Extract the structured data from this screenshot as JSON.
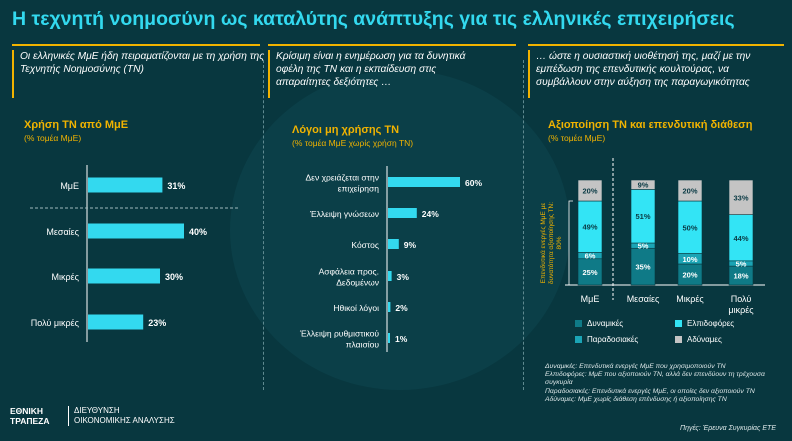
{
  "title": "Η τεχνητή νοημοσύνη ως καταλύτης ανάπτυξης για τις ελληνικές επιχειρήσεις",
  "intros": [
    "Οι ελληνικές ΜμΕ ήδη πειραματίζονται με τη χρήση της Τεχνητής Νοημοσύνης (ΤΝ)",
    "Κρίσιμη είναι η ενημέρωση για τα δυνητικά οφέλη της ΤΝ και η εκπαίδευση στις απαραίτητες δεξιότητες …",
    "… ώστε η ουσιαστική υιοθέτησή της, μαζί με την εμπέδωση της επενδυτικής κουλτούρας, να συμβάλλουν στην αύξηση της παραγωγικότητας"
  ],
  "colors": {
    "background": "#08373f",
    "title": "#33d9ef",
    "accent": "#f1b300",
    "bar": "#33d9ef",
    "dynamic": "#0f7a87",
    "hopeful": "#1ba4b5",
    "traditional": "#33e4f5",
    "weak": "#c4c4c4"
  },
  "chart_data": [
    {
      "type": "bar",
      "orientation": "horizontal",
      "title": "Χρήση ΤΝ από ΜμΕ",
      "subtitle": "(% τομέα ΜμΕ)",
      "categories": [
        "ΜμΕ",
        "Μεσαίες",
        "Μικρές",
        "Πολύ μικρές"
      ],
      "values": [
        31,
        40,
        30,
        23
      ],
      "data_labels": [
        "31%",
        "40%",
        "30%",
        "23%"
      ],
      "xlim": [
        0,
        100
      ]
    },
    {
      "type": "bar",
      "orientation": "horizontal",
      "title": "Λόγοι μη χρήσης ΤΝ",
      "subtitle": "(% τομέα ΜμΕ χωρίς χρήση ΤΝ)",
      "categories": [
        "Δεν χρειάζεται στην επιχείρηση",
        "Έλλειψη γνώσεων",
        "Κόστος",
        "Ασφάλεια προς. Δεδομένων",
        "Ηθικοί λόγοι",
        "Έλλειψη ρυθμιστικού πλαισίου"
      ],
      "values": [
        60,
        24,
        9,
        3,
        2,
        1
      ],
      "data_labels": [
        "60%",
        "24%",
        "9%",
        "3%",
        "2%",
        "1%"
      ],
      "xlim": [
        0,
        100
      ]
    },
    {
      "type": "bar",
      "stacked": true,
      "title": "Αξιοποίηση ΤΝ και επενδυτική διάθεση",
      "subtitle": "(% τομέα ΜμΕ)",
      "categories": [
        "ΜμΕ",
        "Μεσαίες",
        "Μικρές",
        "Πολύ μικρές"
      ],
      "series": [
        {
          "name": "Δυναμικές",
          "values": [
            25,
            35,
            20,
            18
          ],
          "labels": [
            "25%",
            "35%",
            "20%",
            "18%"
          ]
        },
        {
          "name": "Παραδοσιακές",
          "values": [
            6,
            5,
            10,
            5
          ],
          "labels": [
            "6%",
            "5%",
            "10%",
            "5%"
          ]
        },
        {
          "name": "Ελπιδοφόρες",
          "values": [
            49,
            51,
            50,
            44
          ],
          "labels": [
            "49%",
            "51%",
            "50%",
            "44%"
          ]
        },
        {
          "name": "Αδύναμες",
          "values": [
            20,
            9,
            20,
            33
          ],
          "labels": [
            "20%",
            "9%",
            "20%",
            "33%"
          ]
        }
      ],
      "ylim": [
        0,
        100
      ],
      "bracket_label": [
        "Επενδυτικά ενεργές ΜμΕ με",
        "δυνατότητα αξιοποίησης ΤΝ:",
        "80%"
      ],
      "legend_position": "bottom"
    }
  ],
  "notes": [
    "Δυναμικές: Επενδυτικά ενεργές ΜμΕ που χρησιμοποιούν ΤΝ",
    "Ελπιδοφόρες: ΜμΕ που αξιοποιούν ΤΝ, αλλά δεν επενδύουν τη τρέχουσα συγκυρία",
    "Παραδοσιακές: Επενδυτικά ενεργές ΜμΕ, οι οποίες δεν αξιοποιούν ΤΝ",
    "Αδύναμες: ΜμΕ χωρίς διάθεση επένδυσης ή αξιοποίησης ΤΝ"
  ],
  "source": "Πηγές: Έρευνα Συγκυρίας ΕΤΕ",
  "footer": {
    "logo_line1": "ΕΘΝΙΚΗ",
    "logo_line2": "ΤΡΑΠΕΖΑ",
    "dept_line1": "ΔΙΕΥΘΥΝΣΗ",
    "dept_line2": "ΟΙΚΟΝΟΜΙΚΗΣ ΑΝΑΛΥΣΗΣ"
  }
}
